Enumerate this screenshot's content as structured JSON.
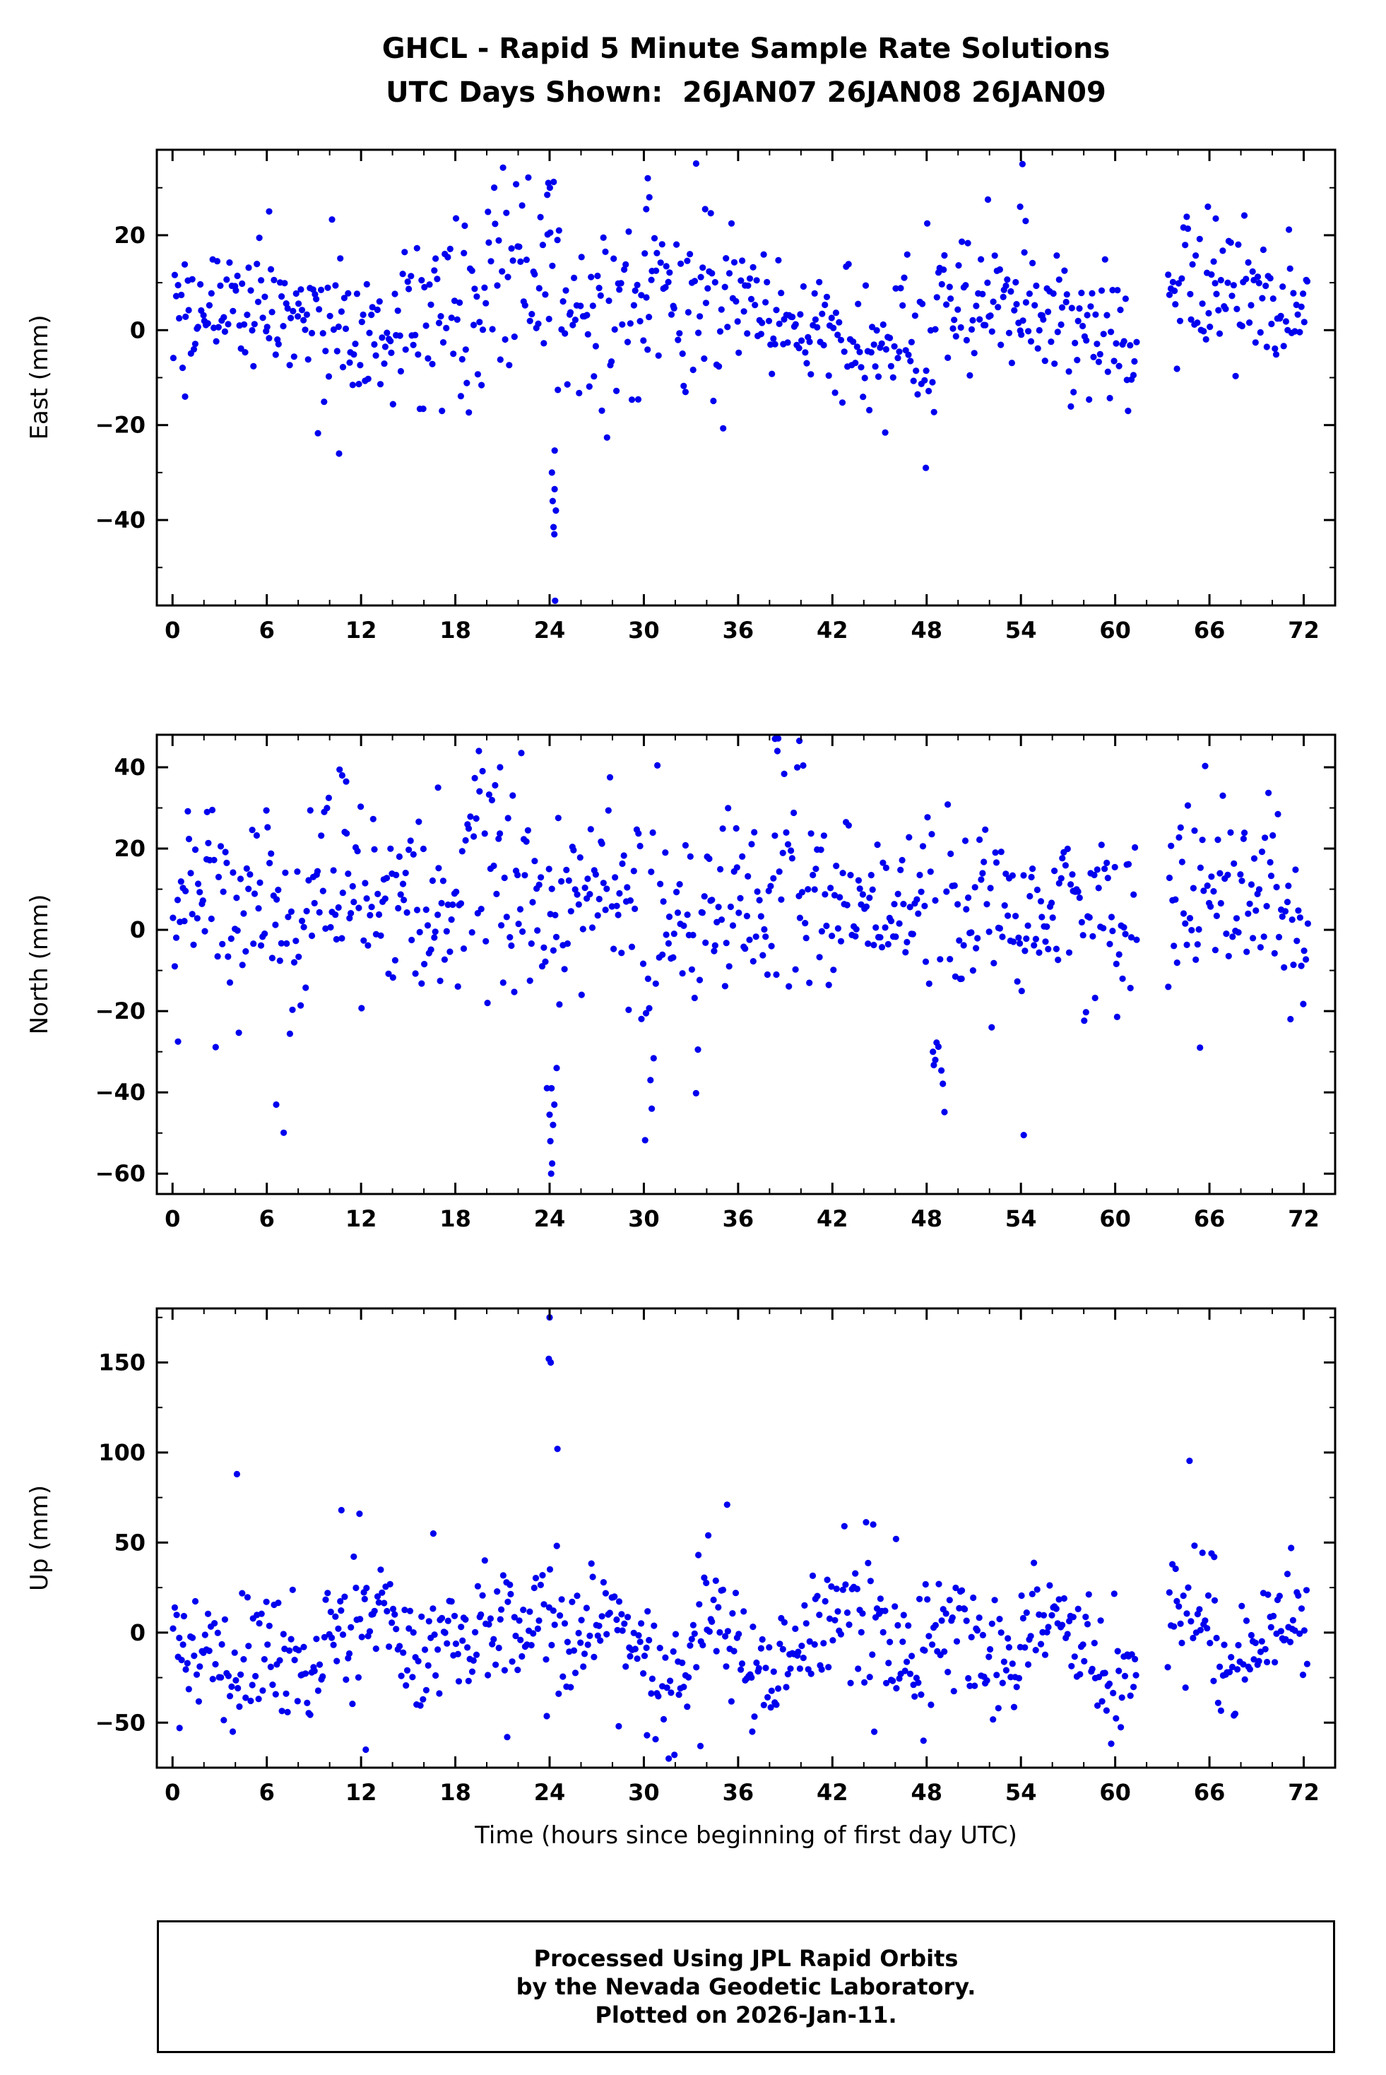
{
  "footer": {
    "line1": "Processed Using JPL Rapid Orbits",
    "line2": "by the Nevada Geodetic Laboratory.",
    "line3": "Plotted on 2026-Jan-11."
  },
  "chart_data": {
    "type": "scatter",
    "station": "GHCL",
    "title": "GHCL - Rapid 5 Minute Sample Rate Solutions",
    "subtitle": "UTC Days Shown:  26JAN07 26JAN08 26JAN09",
    "utc_days": [
      "26JAN07",
      "26JAN08",
      "26JAN09"
    ],
    "xlabel": "Time (hours since beginning of first day UTC)",
    "xlim": [
      -1,
      74
    ],
    "x_ticks": [
      0,
      6,
      12,
      18,
      24,
      30,
      36,
      42,
      48,
      54,
      60,
      66,
      72
    ],
    "x_minor_step": 2,
    "grid": false,
    "legend": "none",
    "point_color": "#0000EE",
    "point_radius_px": 4.6,
    "sample_step_hours": 0.1,
    "x_start": 0.05,
    "x_end": 72.3,
    "gaps": [
      [
        61.4,
        63.3
      ]
    ],
    "seed": 20260111,
    "panels": [
      {
        "name": "East",
        "ylabel": "East (mm)",
        "ylim": [
          -58,
          38
        ],
        "yticks": [
          -40,
          -20,
          0,
          20
        ],
        "y_minor_step": 10,
        "mean": 2.5,
        "sigma": 7,
        "wave_amp": 2.5,
        "wave_period": 16,
        "wave_phase": 0,
        "tail_prob": 0.035,
        "tail_scale": 2.0,
        "regions": [
          {
            "from": 20.0,
            "to": 23.9,
            "shift": 9,
            "scale": 1.5
          },
          {
            "from": 23.9,
            "to": 24.7,
            "shift": -4,
            "scale": 3.0
          },
          {
            "from": 26.0,
            "to": 31.5,
            "shift": 5,
            "scale": 1.5
          },
          {
            "from": 31.5,
            "to": 34.5,
            "shift": 4,
            "scale": 1.3
          },
          {
            "from": 14.0,
            "to": 19.0,
            "shift": -4,
            "scale": 1.4
          },
          {
            "from": 44.0,
            "to": 48.5,
            "shift": -3,
            "scale": 1.3
          },
          {
            "from": 63.2,
            "to": 68.0,
            "shift": 5,
            "scale": 1.2
          }
        ],
        "outliers": [
          [
            24.35,
            -57
          ],
          [
            24.3,
            -43
          ],
          [
            24.25,
            -41.5
          ],
          [
            24.4,
            -38
          ],
          [
            24.2,
            -36
          ],
          [
            24.32,
            -33.5
          ],
          [
            24.15,
            -30
          ],
          [
            23.92,
            31
          ],
          [
            24.02,
            30
          ],
          [
            23.85,
            28.5
          ],
          [
            24.6,
            21
          ],
          [
            24.5,
            19
          ],
          [
            30.25,
            32
          ],
          [
            30.35,
            28
          ],
          [
            30.15,
            25.5
          ],
          [
            10.6,
            -26
          ],
          [
            47.95,
            -29
          ],
          [
            54.1,
            35
          ],
          [
            53.95,
            26
          ],
          [
            51.9,
            27.5
          ],
          [
            6.15,
            25
          ],
          [
            33.9,
            25.5
          ],
          [
            65.9,
            26
          ],
          [
            66.4,
            23.5
          ],
          [
            54.3,
            23
          ],
          [
            18.6,
            22
          ],
          [
            0.8,
            -14
          ]
        ]
      },
      {
        "name": "North",
        "ylabel": "North (mm)",
        "ylim": [
          -65,
          48
        ],
        "yticks": [
          -60,
          -40,
          -20,
          0,
          20,
          40
        ],
        "y_minor_step": 10,
        "mean": 5,
        "sigma": 10.5,
        "wave_amp": 4,
        "wave_period": 13,
        "wave_phase": 2,
        "tail_prob": 0.03,
        "tail_scale": 2.0,
        "regions": [
          {
            "from": 23.8,
            "to": 24.8,
            "shift": -14,
            "scale": 2.4
          },
          {
            "from": 8.5,
            "to": 12.2,
            "shift": 9,
            "scale": 1.3
          },
          {
            "from": 18.5,
            "to": 22.5,
            "shift": 8,
            "scale": 1.4
          },
          {
            "from": 29.8,
            "to": 31.0,
            "shift": -8,
            "scale": 1.8
          },
          {
            "from": 37.8,
            "to": 40.5,
            "shift": 8,
            "scale": 1.5
          },
          {
            "from": 48.1,
            "to": 49.2,
            "shift": -16,
            "scale": 1.6
          },
          {
            "from": 53.6,
            "to": 54.6,
            "shift": -6,
            "scale": 1.8
          },
          {
            "from": 63.2,
            "to": 66.0,
            "shift": 3,
            "scale": 1.1
          }
        ],
        "outliers": [
          [
            24.1,
            -60
          ],
          [
            24.16,
            -57.5
          ],
          [
            24.05,
            -52
          ],
          [
            24.22,
            -48
          ],
          [
            24.0,
            -45.5
          ],
          [
            24.3,
            -43
          ],
          [
            24.12,
            -39
          ],
          [
            24.45,
            -34
          ],
          [
            6.6,
            -43
          ],
          [
            30.5,
            -44
          ],
          [
            30.42,
            -37
          ],
          [
            54.18,
            -50.5
          ],
          [
            38.35,
            47
          ],
          [
            39.9,
            46.5
          ],
          [
            38.5,
            44
          ],
          [
            19.5,
            44
          ],
          [
            22.2,
            43.5
          ],
          [
            20.85,
            40
          ],
          [
            10.8,
            38
          ],
          [
            11.05,
            36.5
          ],
          [
            48.55,
            -32
          ],
          [
            48.4,
            -30
          ],
          [
            65.4,
            -29
          ],
          [
            0.35,
            -27.5
          ],
          [
            2.2,
            29
          ],
          [
            16.9,
            35
          ]
        ]
      },
      {
        "name": "Up",
        "ylabel": "Up (mm)",
        "ylim": [
          -75,
          180
        ],
        "yticks": [
          -50,
          0,
          50,
          100,
          150
        ],
        "y_minor_step": 25,
        "mean": -4,
        "sigma": 15,
        "wave_amp": 13,
        "wave_period": 7.2,
        "wave_phase": 3.2,
        "tail_prob": 0.03,
        "tail_scale": 1.8,
        "regions": [
          {
            "from": 23.0,
            "to": 24.7,
            "shift": 24,
            "scale": 1.6
          },
          {
            "from": 3.5,
            "to": 7.5,
            "shift": -16,
            "scale": 1.3
          },
          {
            "from": 9.5,
            "to": 12.5,
            "shift": 12,
            "scale": 1.5
          },
          {
            "from": 14.5,
            "to": 16.0,
            "shift": -12,
            "scale": 1.2
          },
          {
            "from": 16.0,
            "to": 18.0,
            "shift": 10,
            "scale": 1.4
          },
          {
            "from": 30.5,
            "to": 33.0,
            "shift": -10,
            "scale": 1.2
          },
          {
            "from": 36.0,
            "to": 38.5,
            "shift": -12,
            "scale": 1.3
          },
          {
            "from": 42.5,
            "to": 45.5,
            "shift": 14,
            "scale": 1.5
          },
          {
            "from": 47.0,
            "to": 49.0,
            "shift": -14,
            "scale": 1.4
          },
          {
            "from": 57.5,
            "to": 60.0,
            "shift": -8,
            "scale": 1.2
          },
          {
            "from": 63.2,
            "to": 66.5,
            "shift": 10,
            "scale": 1.2
          }
        ],
        "outliers": [
          [
            24.0,
            175
          ],
          [
            23.95,
            152
          ],
          [
            24.07,
            150
          ],
          [
            24.5,
            102
          ],
          [
            4.1,
            88
          ],
          [
            10.75,
            68
          ],
          [
            11.9,
            66
          ],
          [
            35.3,
            71
          ],
          [
            44.6,
            60
          ],
          [
            16.6,
            55
          ],
          [
            34.1,
            54
          ],
          [
            46.05,
            52
          ],
          [
            12.3,
            -65
          ],
          [
            33.6,
            -63
          ],
          [
            0.45,
            -53
          ],
          [
            30.2,
            -57
          ],
          [
            36.9,
            -55
          ],
          [
            47.8,
            -60
          ],
          [
            21.3,
            -58
          ],
          [
            28.4,
            -52
          ],
          [
            71.2,
            47
          ],
          [
            66.3,
            42
          ]
        ]
      }
    ]
  }
}
